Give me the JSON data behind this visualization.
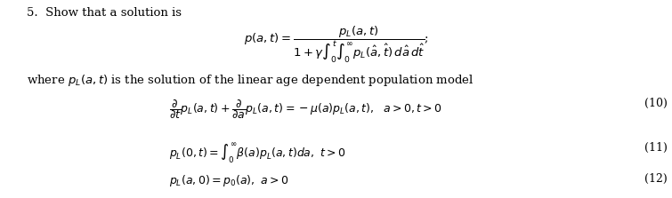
{
  "background_color": "#ffffff",
  "text_color": "#000000",
  "fig_width": 7.55,
  "fig_height": 2.23,
  "dpi": 100,
  "intro_text": "5.  Show that a solution is",
  "main_eq": "$p(a,t) = \\dfrac{p_L(a,t)}{1 + \\gamma \\int_0^t \\int_0^{\\infty} p_L(\\hat{a},\\hat{t})\\, d\\hat{a}\\, d\\hat{t}}$;",
  "where_text": "where $p_L(a,t)$ is the solution of the linear age dependent population model",
  "eq10": "$\\dfrac{\\partial}{\\partial t}p_L(a,t) + \\dfrac{\\partial}{\\partial a}p_L(a,t) = -\\mu(a)p_L(a,t),\\ \\ a > 0, t > 0$",
  "eq10_label": "(10)",
  "eq11": "$p_L(0,t) = \\int_0^{\\infty} \\beta(a)p_L(a,t)da,\\ t > 0$",
  "eq11_label": "(11)",
  "eq12": "$p_L(a,0) = p_0(a),\\ a > 0$",
  "eq12_label": "(12)",
  "fontsize_intro": 9.5,
  "fontsize_main": 9.5,
  "fontsize_where": 9.5,
  "fontsize_eq": 9.0,
  "fontsize_label": 9.0
}
